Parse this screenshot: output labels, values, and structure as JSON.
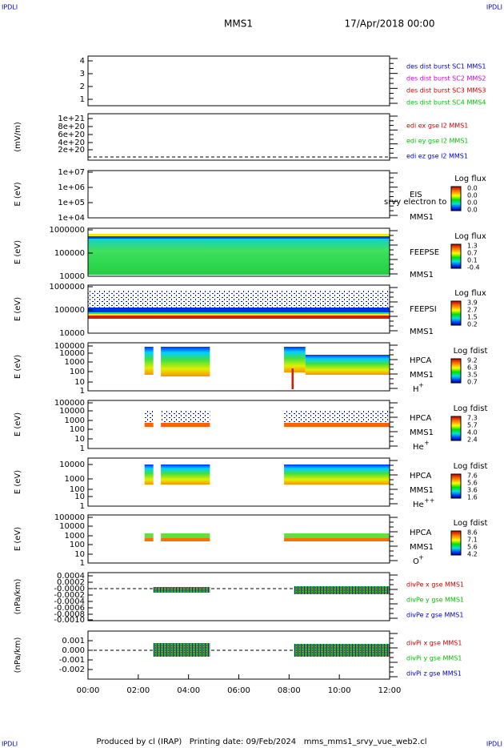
{
  "corner_label": "IPDLI",
  "header": {
    "title": "MMS1",
    "date": "17/Apr/2018 00:00"
  },
  "xticks": [
    "00:00",
    "02:00",
    "04:00",
    "06:00",
    "08:00",
    "10:00",
    "12:00"
  ],
  "panels": [
    {
      "ylabel": "",
      "yticks": [
        "4",
        "3",
        "2",
        "1"
      ],
      "legend": [
        {
          "text": "des dist burst SC1 MMS1",
          "color": "#0000c0"
        },
        {
          "text": "des dist burst SC2 MMS2",
          "color": "#d000d0"
        },
        {
          "text": "des dist burst SC3 MMS3",
          "color": "#d00000"
        },
        {
          "text": "des dist burst SC4 MMS4",
          "color": "#00c000"
        }
      ]
    },
    {
      "ylabel": "(mV/m)",
      "yticks": [
        "1e+21",
        "8e+20",
        "6e+20",
        "4e+20",
        "2e+20"
      ],
      "legend": [
        {
          "text": "edi ex gse l2 MMS1",
          "color": "#d00000"
        },
        {
          "text": "edi ey gse l2 MMS1",
          "color": "#00c000"
        },
        {
          "text": "edi ez gse l2 MMS1",
          "color": "#0000c0"
        }
      ]
    },
    {
      "ylabel": "E (eV)",
      "yticks": [
        "1e+07",
        "1e+06",
        "1e+05",
        "1e+04"
      ],
      "side": [
        "EIS",
        "srvy electron to",
        "MMS1"
      ],
      "colorbar": {
        "title": "Log flux",
        "labels": [
          "0.0",
          "0.0",
          "0.0",
          "0.0"
        ]
      }
    },
    {
      "ylabel": "E (eV)",
      "yticks": [
        "1000000",
        "100000",
        "10000"
      ],
      "side": [
        "FEEPSE",
        "MMS1"
      ],
      "colorbar": {
        "title": "Log flux",
        "labels": [
          "1.3",
          "0.7",
          "0.1",
          "-0.4"
        ]
      }
    },
    {
      "ylabel": "E (eV)",
      "yticks": [
        "1000000",
        "100000",
        "10000"
      ],
      "side": [
        "FEEPSI",
        "MMS1"
      ],
      "colorbar": {
        "title": "Log flux",
        "labels": [
          "3.9",
          "2.7",
          "1.5",
          "0.2"
        ]
      }
    },
    {
      "ylabel": "E (eV)",
      "yticks": [
        "100000",
        "10000",
        "1000",
        "100",
        "10",
        "1"
      ],
      "side": [
        "HPCA",
        "MMS1"
      ],
      "species": {
        "base": "H",
        "sup": "+"
      },
      "colorbar": {
        "title": "Log fdist",
        "labels": [
          "9.2",
          "6.3",
          "3.5",
          "0.7"
        ]
      }
    },
    {
      "ylabel": "E (eV)",
      "yticks": [
        "100000",
        "10000",
        "1000",
        "100",
        "10",
        "1"
      ],
      "side": [
        "HPCA",
        "MMS1"
      ],
      "species": {
        "base": "He",
        "sup": "+"
      },
      "colorbar": {
        "title": "Log fdist",
        "labels": [
          "7.3",
          "5.7",
          "4.0",
          "2.4"
        ]
      }
    },
    {
      "ylabel": "E (eV)",
      "yticks": [
        "10000",
        "1000",
        "100",
        "10",
        "1"
      ],
      "side": [
        "HPCA",
        "MMS1"
      ],
      "species": {
        "base": "He",
        "sup": "++"
      },
      "colorbar": {
        "title": "Log fdist",
        "labels": [
          "7.6",
          "5.6",
          "3.6",
          "1.6"
        ]
      }
    },
    {
      "ylabel": "E (eV)",
      "yticks": [
        "100000",
        "10000",
        "1000",
        "100",
        "10",
        "1"
      ],
      "side": [
        "HPCA",
        "MMS1"
      ],
      "species": {
        "base": "O",
        "sup": "+"
      },
      "colorbar": {
        "title": "Log fdist",
        "labels": [
          "8.6",
          "7.1",
          "5.6",
          "4.2"
        ]
      }
    },
    {
      "ylabel": "(nPa/km)",
      "yticks": [
        "0.0004",
        "0.0002",
        "-0.0000",
        "-0.0002",
        "-0.0004",
        "-0.0006",
        "-0.0008",
        "-0.0010"
      ],
      "legend": [
        {
          "text": "divPe x gse MMS1",
          "color": "#d00000"
        },
        {
          "text": "divPe y gse MMS1",
          "color": "#00c000"
        },
        {
          "text": "divPe z gse MMS1",
          "color": "#0000c0"
        }
      ]
    },
    {
      "ylabel": "(nPa/km)",
      "yticks": [
        "0.001",
        "0.000",
        "-0.001",
        "-0.002"
      ],
      "legend": [
        {
          "text": "divPi x gse MMS1",
          "color": "#d00000"
        },
        {
          "text": "divPi y gse MMS1",
          "color": "#00c000"
        },
        {
          "text": "divPi z gse MMS1",
          "color": "#0000c0"
        }
      ]
    }
  ],
  "footer": "Produced by cl (IRAP)   Printing date: 09/Feb/2024   mms_mms1_srvy_vue_web2.cl"
}
